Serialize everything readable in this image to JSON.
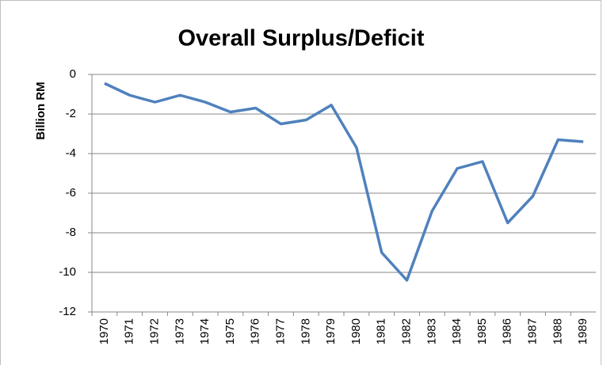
{
  "chart_data": {
    "type": "line",
    "title": "Overall Surplus/Deficit",
    "y_label": "Billion RM",
    "categories": [
      "1970",
      "1971",
      "1972",
      "1973",
      "1974",
      "1975",
      "1976",
      "1977",
      "1978",
      "1979",
      "1980",
      "1981",
      "1982",
      "1983",
      "1984",
      "1985",
      "1986",
      "1987",
      "1988",
      "1989"
    ],
    "series": [
      {
        "name": "Overall Surplus/Deficit",
        "color": "#4f81bd",
        "values": [
          -0.45,
          -1.05,
          -1.4,
          -1.05,
          -1.4,
          -1.9,
          -1.7,
          -2.5,
          -2.3,
          -1.55,
          -3.7,
          -9.0,
          -10.4,
          -6.9,
          -4.75,
          -4.4,
          -7.5,
          -6.15,
          -3.3,
          -3.4
        ]
      }
    ],
    "ylim": [
      -12,
      0
    ],
    "yticks": [
      0,
      -2,
      -4,
      -6,
      -8,
      -10,
      -12
    ],
    "grid": true,
    "legend": false
  }
}
